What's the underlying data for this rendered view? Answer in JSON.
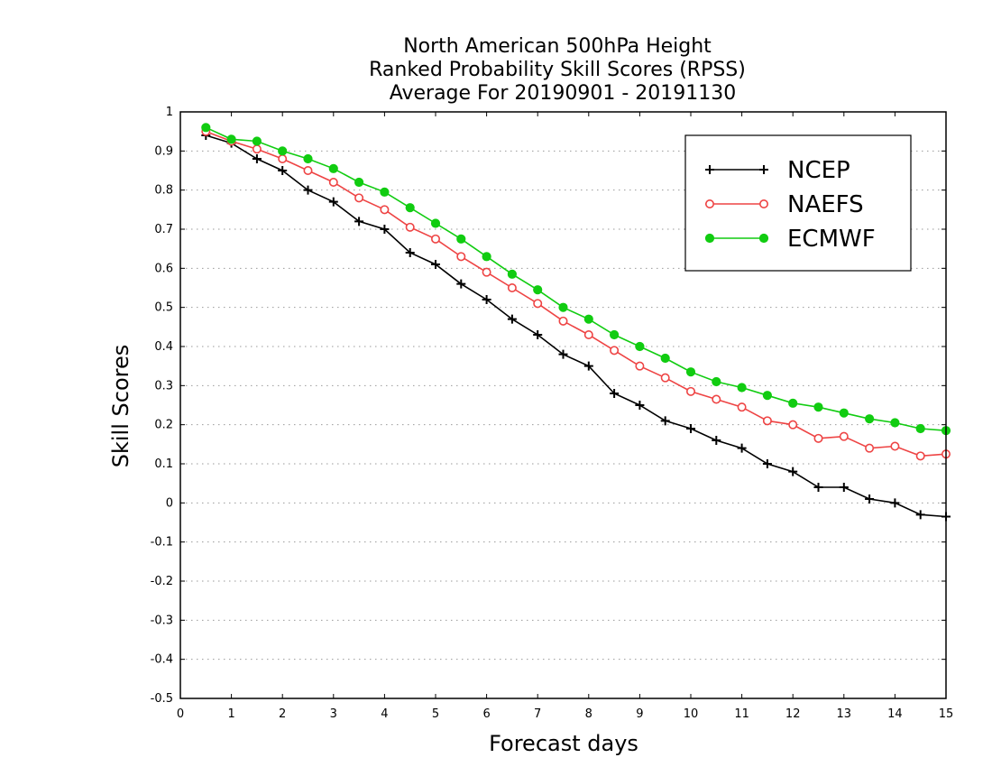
{
  "chart_data": {
    "type": "line",
    "title_lines": [
      "North American 500hPa Height",
      "Ranked Probability Skill Scores (RPSS)",
      "Average For 20190901 - 20191130"
    ],
    "xlabel": "Forecast days",
    "ylabel": "Skill Scores",
    "xlim": [
      0,
      15
    ],
    "ylim": [
      -0.5,
      1
    ],
    "x_ticks": [
      0,
      1,
      2,
      3,
      4,
      5,
      6,
      7,
      8,
      9,
      10,
      11,
      12,
      13,
      14,
      15
    ],
    "y_ticks": [
      -0.5,
      -0.4,
      -0.3,
      -0.2,
      -0.1,
      0,
      0.1,
      0.2,
      0.3,
      0.4,
      0.5,
      0.6,
      0.7,
      0.8,
      0.9,
      1
    ],
    "y_tick_labels": [
      "-0.5",
      "-0.4",
      "-0.3",
      "-0.2",
      "-0.1",
      "0",
      "0.1",
      "0.2",
      "0.3",
      "0.4",
      "0.5",
      "0.6",
      "0.7",
      "0.8",
      "0.9",
      "1"
    ],
    "grid": "horizontal dotted",
    "legend_position": "top-right",
    "x": [
      0.5,
      1,
      1.5,
      2,
      2.5,
      3,
      3.5,
      4,
      4.5,
      5,
      5.5,
      6,
      6.5,
      7,
      7.5,
      8,
      8.5,
      9,
      9.5,
      10,
      10.5,
      11,
      11.5,
      12,
      12.5,
      13,
      13.5,
      14,
      14.5,
      15
    ],
    "series": [
      {
        "name": "NCEP",
        "color": "#000000",
        "marker": "plus",
        "values": [
          0.94,
          0.92,
          0.88,
          0.85,
          0.8,
          0.77,
          0.72,
          0.7,
          0.64,
          0.61,
          0.56,
          0.52,
          0.47,
          0.43,
          0.38,
          0.35,
          0.28,
          0.25,
          0.21,
          0.19,
          0.16,
          0.14,
          0.1,
          0.08,
          0.04,
          0.04,
          0.01,
          0.0,
          -0.03,
          -0.035
        ]
      },
      {
        "name": "NAEFS",
        "color": "#ee4444",
        "marker": "open-circle",
        "values": [
          0.95,
          0.925,
          0.905,
          0.88,
          0.85,
          0.82,
          0.78,
          0.75,
          0.705,
          0.675,
          0.63,
          0.59,
          0.55,
          0.51,
          0.465,
          0.43,
          0.39,
          0.35,
          0.32,
          0.285,
          0.265,
          0.245,
          0.21,
          0.2,
          0.165,
          0.17,
          0.14,
          0.145,
          0.12,
          0.125
        ]
      },
      {
        "name": "ECMWF",
        "color": "#11cc11",
        "marker": "filled-circle",
        "values": [
          0.96,
          0.93,
          0.925,
          0.9,
          0.88,
          0.855,
          0.82,
          0.795,
          0.755,
          0.715,
          0.675,
          0.63,
          0.585,
          0.545,
          0.5,
          0.47,
          0.43,
          0.4,
          0.37,
          0.335,
          0.31,
          0.295,
          0.275,
          0.255,
          0.245,
          0.23,
          0.215,
          0.205,
          0.19,
          0.185
        ]
      }
    ]
  }
}
